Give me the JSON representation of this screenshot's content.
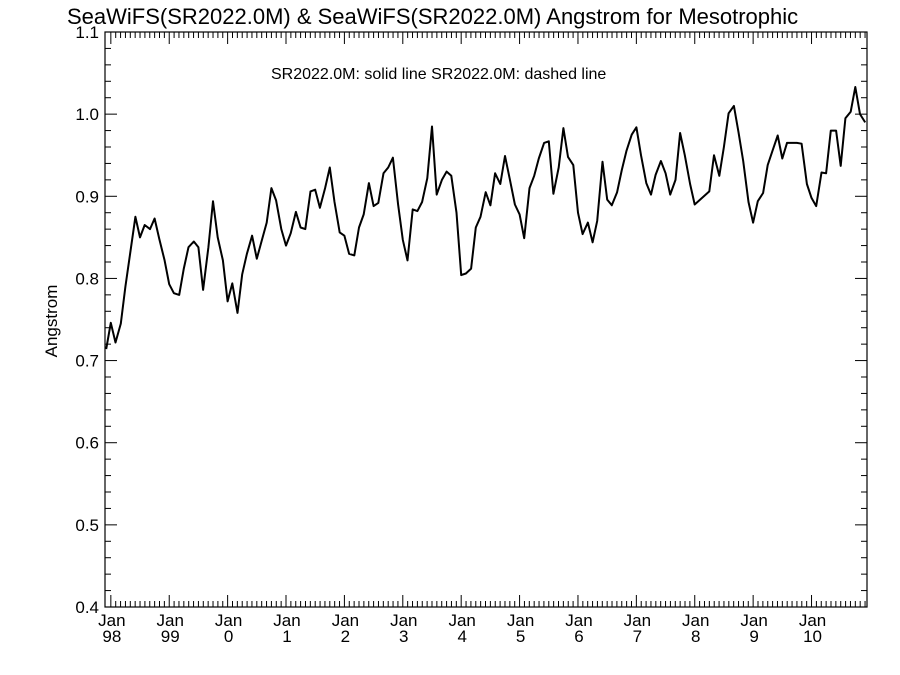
{
  "chart_data": {
    "type": "line",
    "title": "SeaWiFS(SR2022.0M) & SeaWiFS(SR2022.0M)  Angstrom for Mesotrophic",
    "legend_text": "SR2022.0M: solid line   SR2022.0M: dashed line",
    "ylabel": "Angstrom",
    "xlabel": "",
    "ylim": [
      0.4,
      1.1
    ],
    "xlim": [
      1997.9,
      2010.95
    ],
    "yticks": [
      {
        "value": 0.4,
        "label": "0.4"
      },
      {
        "value": 0.5,
        "label": "0.5"
      },
      {
        "value": 0.6,
        "label": "0.6"
      },
      {
        "value": 0.7,
        "label": "0.7"
      },
      {
        "value": 0.8,
        "label": "0.8"
      },
      {
        "value": 0.9,
        "label": "0.9"
      },
      {
        "value": 1.0,
        "label": "1.0"
      },
      {
        "value": 1.1,
        "label": "1.1"
      }
    ],
    "xticks": [
      {
        "value": 1998,
        "month": "Jan",
        "year": "98"
      },
      {
        "value": 1999,
        "month": "Jan",
        "year": "99"
      },
      {
        "value": 2000,
        "month": "Jan",
        "year": "0"
      },
      {
        "value": 2001,
        "month": "Jan",
        "year": "1"
      },
      {
        "value": 2002,
        "month": "Jan",
        "year": "2"
      },
      {
        "value": 2003,
        "month": "Jan",
        "year": "3"
      },
      {
        "value": 2004,
        "month": "Jan",
        "year": "4"
      },
      {
        "value": 2005,
        "month": "Jan",
        "year": "5"
      },
      {
        "value": 2006,
        "month": "Jan",
        "year": "6"
      },
      {
        "value": 2007,
        "month": "Jan",
        "year": "7"
      },
      {
        "value": 2008,
        "month": "Jan",
        "year": "8"
      },
      {
        "value": 2009,
        "month": "Jan",
        "year": "9"
      },
      {
        "value": 2010,
        "month": "Jan",
        "year": "10"
      }
    ],
    "series": [
      {
        "style": "solid",
        "color": "#000000",
        "x": [
          1997.92,
          1998.0,
          1998.08,
          1998.17,
          1998.25,
          1998.33,
          1998.42,
          1998.5,
          1998.58,
          1998.67,
          1998.75,
          1998.83,
          1998.92,
          1999.0,
          1999.08,
          1999.17,
          1999.25,
          1999.33,
          1999.42,
          1999.5,
          1999.58,
          1999.67,
          1999.75,
          1999.83,
          1999.92,
          2000.0,
          2000.08,
          2000.17,
          2000.25,
          2000.33,
          2000.42,
          2000.5,
          2000.58,
          2000.67,
          2000.75,
          2000.83,
          2000.92,
          2001.0,
          2001.08,
          2001.17,
          2001.25,
          2001.33,
          2001.42,
          2001.5,
          2001.58,
          2001.67,
          2001.75,
          2001.83,
          2001.92,
          2002.0,
          2002.08,
          2002.17,
          2002.25,
          2002.33,
          2002.42,
          2002.5,
          2002.58,
          2002.67,
          2002.75,
          2002.83,
          2002.92,
          2003.0,
          2003.08,
          2003.17,
          2003.25,
          2003.33,
          2003.42,
          2003.5,
          2003.58,
          2003.67,
          2003.75,
          2003.83,
          2003.92,
          2004.0,
          2004.08,
          2004.17,
          2004.25,
          2004.33,
          2004.42,
          2004.5,
          2004.58,
          2004.67,
          2004.75,
          2004.83,
          2004.92,
          2005.0,
          2005.08,
          2005.17,
          2005.25,
          2005.33,
          2005.42,
          2005.5,
          2005.58,
          2005.67,
          2005.75,
          2005.83,
          2005.92,
          2006.0,
          2006.08,
          2006.17,
          2006.25,
          2006.33,
          2006.42,
          2006.5,
          2006.58,
          2006.67,
          2006.75,
          2006.83,
          2006.92,
          2007.0,
          2007.08,
          2007.17,
          2007.25,
          2007.33,
          2007.42,
          2007.5,
          2007.58,
          2007.67,
          2007.75,
          2007.83,
          2007.92,
          2008.0,
          2008.25,
          2008.33,
          2008.42,
          2008.5,
          2008.58,
          2008.67,
          2008.75,
          2008.83,
          2008.92,
          2009.0,
          2009.08,
          2009.17,
          2009.25,
          2009.33,
          2009.42,
          2009.5,
          2009.58,
          2009.67,
          2009.75,
          2009.83,
          2009.92,
          2010.0,
          2010.08,
          2010.17,
          2010.25,
          2010.33,
          2010.42,
          2010.5,
          2010.58,
          2010.67,
          2010.75,
          2010.83,
          2010.92
        ],
        "y": [
          0.714,
          0.746,
          0.722,
          0.745,
          0.79,
          0.83,
          0.875,
          0.85,
          0.865,
          0.86,
          0.873,
          0.848,
          0.822,
          0.793,
          0.782,
          0.78,
          0.812,
          0.838,
          0.845,
          0.838,
          0.786,
          0.838,
          0.894,
          0.85,
          0.822,
          0.772,
          0.794,
          0.758,
          0.805,
          0.83,
          0.852,
          0.824,
          0.845,
          0.868,
          0.91,
          0.895,
          0.86,
          0.84,
          0.855,
          0.881,
          0.862,
          0.86,
          0.906,
          0.908,
          0.886,
          0.91,
          0.935,
          0.893,
          0.856,
          0.852,
          0.83,
          0.828,
          0.862,
          0.878,
          0.916,
          0.888,
          0.892,
          0.928,
          0.935,
          0.947,
          0.89,
          0.847,
          0.822,
          0.884,
          0.882,
          0.893,
          0.922,
          0.985,
          0.902,
          0.92,
          0.93,
          0.925,
          0.88,
          0.804,
          0.806,
          0.812,
          0.862,
          0.875,
          0.905,
          0.889,
          0.928,
          0.915,
          0.949,
          0.922,
          0.89,
          0.878,
          0.849,
          0.91,
          0.925,
          0.946,
          0.965,
          0.967,
          0.903,
          0.935,
          0.983,
          0.948,
          0.938,
          0.88,
          0.854,
          0.868,
          0.844,
          0.87,
          0.942,
          0.896,
          0.889,
          0.905,
          0.932,
          0.955,
          0.975,
          0.984,
          0.95,
          0.916,
          0.902,
          0.926,
          0.943,
          0.928,
          0.902,
          0.92,
          0.977,
          0.95,
          0.915,
          0.89,
          0.906,
          0.95,
          0.925,
          0.96,
          1.001,
          1.01,
          0.978,
          0.943,
          0.893,
          0.868,
          0.894,
          0.904,
          0.938,
          0.955,
          0.974,
          0.946,
          0.965,
          0.965,
          0.965,
          0.964,
          0.915,
          0.898,
          0.888,
          0.929,
          0.928,
          0.98,
          0.98,
          0.937,
          0.995,
          1.003,
          1.033,
          1.0,
          0.99
        ]
      }
    ]
  }
}
